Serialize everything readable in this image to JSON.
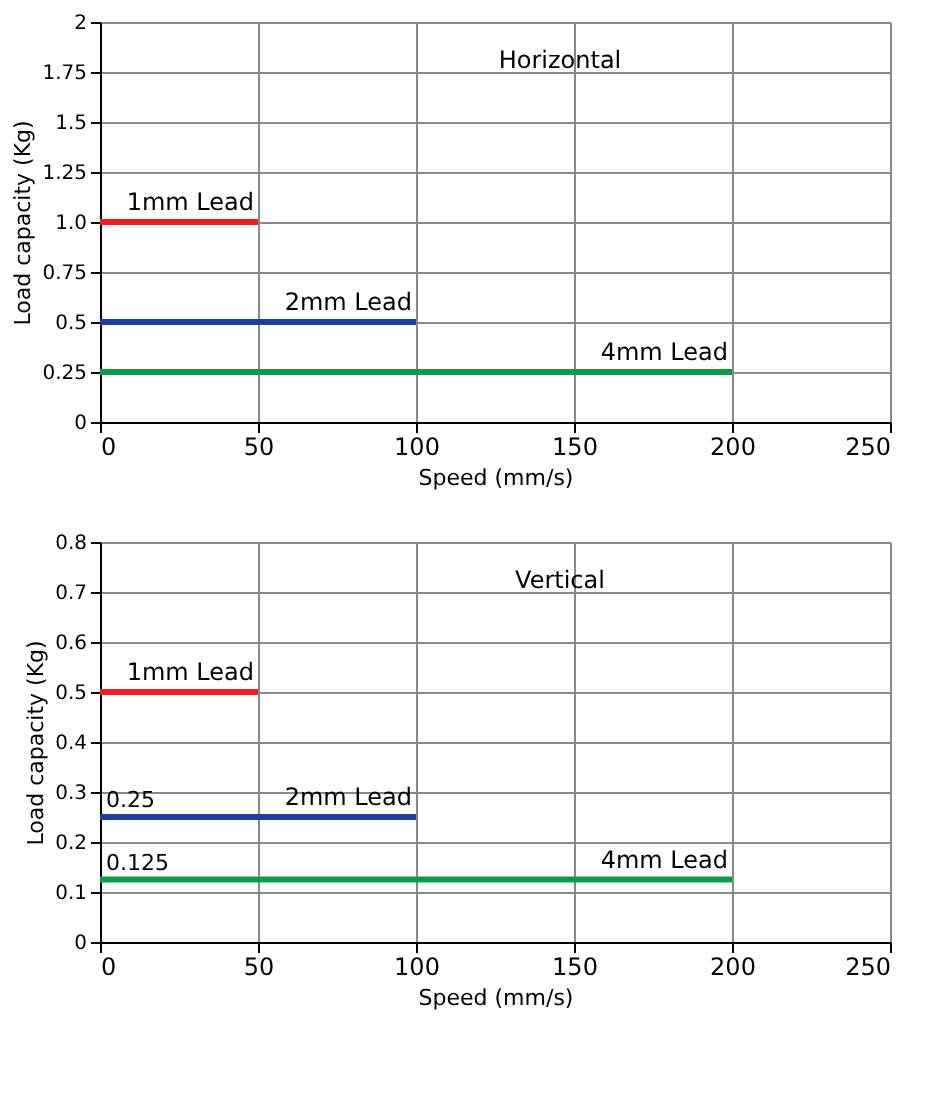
{
  "chart_data": [
    {
      "type": "line",
      "xlabel": "Speed (mm/s)",
      "ylabel": "Load capacity (Kg)",
      "annotations": [
        "Horizontal"
      ],
      "xlim": [
        0,
        250
      ],
      "xticks": [
        0,
        50,
        100,
        150,
        200,
        250
      ],
      "ylim": [
        0,
        2
      ],
      "yticks": [
        0,
        0.25,
        0.5,
        0.75,
        {
          "value": 1,
          "label": "1.0"
        },
        1.25,
        1.5,
        1.75,
        2
      ],
      "grid": true,
      "legend": false,
      "marker": "none",
      "line_style": "solid",
      "series": [
        {
          "name": "1mm Lead",
          "color": "#ee1c25",
          "x": [
            0,
            50
          ],
          "values": [
            1,
            1
          ]
        },
        {
          "name": "2mm Lead",
          "color": "#1f3f9f",
          "x": [
            0,
            100
          ],
          "values": [
            0.5,
            0.5
          ]
        },
        {
          "name": "4mm Lead",
          "color": "#0e9a48",
          "x": [
            0,
            200
          ],
          "values": [
            0.25,
            0.25
          ]
        }
      ]
    },
    {
      "type": "line",
      "xlabel": "Speed (mm/s)",
      "ylabel": "Load capacity (Kg)",
      "annotations": [
        "Vertical",
        {
          "text": "0.25",
          "x": 0,
          "y": 0.25
        },
        {
          "text": "0.125",
          "x": 0,
          "y": 0.125
        }
      ],
      "xlim": [
        0,
        250
      ],
      "xticks": [
        0,
        50,
        100,
        150,
        200,
        250
      ],
      "ylim": [
        0,
        0.8
      ],
      "yticks": [
        0,
        0.1,
        0.2,
        0.3,
        0.4,
        0.5,
        0.6,
        0.7,
        0.8
      ],
      "grid": true,
      "legend": false,
      "marker": "none",
      "line_style": "solid",
      "series": [
        {
          "name": "1mm Lead",
          "color": "#ee1c25",
          "x": [
            0,
            50
          ],
          "values": [
            0.5,
            0.5
          ]
        },
        {
          "name": "2mm Lead",
          "color": "#1f3f9f",
          "x": [
            0,
            100
          ],
          "values": [
            0.25,
            0.25
          ]
        },
        {
          "name": "4mm Lead",
          "color": "#0e9a48",
          "x": [
            0,
            200
          ],
          "values": [
            0.125,
            0.125
          ]
        }
      ]
    }
  ]
}
